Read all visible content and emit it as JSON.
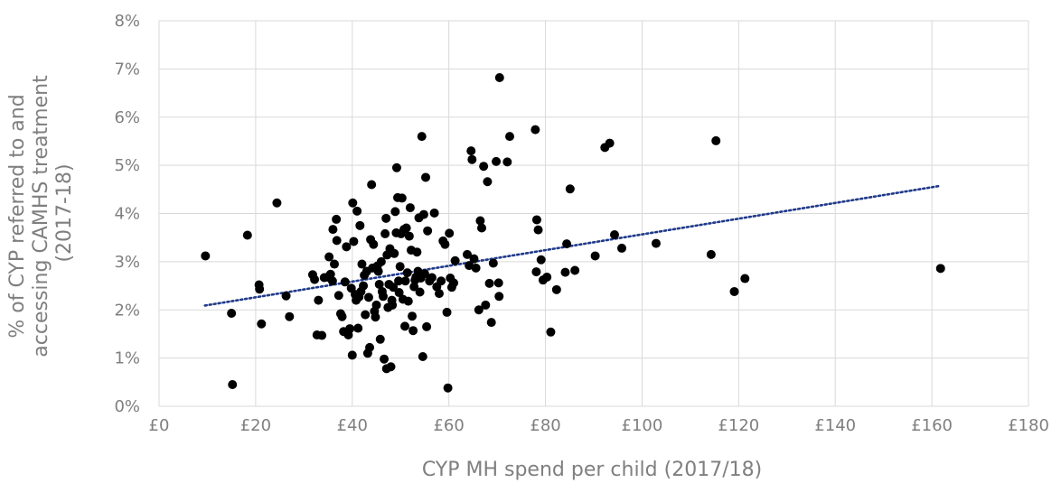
{
  "chart_data": {
    "type": "scatter",
    "xlabel": "CYP MH spend per child (2017/18)",
    "ylabel_lines": [
      "% of CYP referred to and",
      "accessing CAMHS treatment",
      "(2017-18)"
    ],
    "xlim": [
      0,
      180
    ],
    "ylim": [
      0,
      8
    ],
    "x_ticks": [
      {
        "value": 0,
        "label": "£0"
      },
      {
        "value": 20,
        "label": "£20"
      },
      {
        "value": 40,
        "label": "£40"
      },
      {
        "value": 60,
        "label": "£60"
      },
      {
        "value": 80,
        "label": "£80"
      },
      {
        "value": 100,
        "label": "£100"
      },
      {
        "value": 120,
        "label": "£120"
      },
      {
        "value": 140,
        "label": "£140"
      },
      {
        "value": 160,
        "label": "£160"
      },
      {
        "value": 180,
        "label": "£180"
      }
    ],
    "y_ticks": [
      {
        "value": 0,
        "label": "0%"
      },
      {
        "value": 1,
        "label": "1%"
      },
      {
        "value": 2,
        "label": "2%"
      },
      {
        "value": 3,
        "label": "3%"
      },
      {
        "value": 4,
        "label": "4%"
      },
      {
        "value": 5,
        "label": "5%"
      },
      {
        "value": 6,
        "label": "6%"
      },
      {
        "value": 7,
        "label": "7%"
      },
      {
        "value": 8,
        "label": "8%"
      }
    ],
    "grid": true,
    "point_color": "#000000",
    "trendline": {
      "type": "linear",
      "color": "#1f3a8a",
      "style": "dotted",
      "x_start": 9.5,
      "y_start": 2.09,
      "x_end": 161.5,
      "y_end": 4.57
    },
    "points": [
      [
        9.6,
        3.12
      ],
      [
        15,
        1.93
      ],
      [
        15.2,
        0.45
      ],
      [
        18.3,
        3.55
      ],
      [
        20.7,
        2.52
      ],
      [
        20.8,
        2.43
      ],
      [
        21.2,
        1.71
      ],
      [
        24.4,
        4.22
      ],
      [
        26.3,
        2.29
      ],
      [
        27,
        1.86
      ],
      [
        31.8,
        2.73
      ],
      [
        32.2,
        2.63
      ],
      [
        32.7,
        1.48
      ],
      [
        33,
        2.2
      ],
      [
        33.7,
        1.47
      ],
      [
        34.2,
        2.67
      ],
      [
        34.9,
        2.68
      ],
      [
        35.2,
        3.1
      ],
      [
        35.5,
        2.74
      ],
      [
        35.9,
        2.6
      ],
      [
        36,
        3.67
      ],
      [
        36.3,
        2.95
      ],
      [
        36.7,
        3.88
      ],
      [
        36.8,
        3.44
      ],
      [
        37.2,
        2.3
      ],
      [
        37.6,
        1.92
      ],
      [
        37.9,
        1.86
      ],
      [
        38.2,
        1.55
      ],
      [
        38.5,
        2.58
      ],
      [
        38.8,
        3.31
      ],
      [
        39.2,
        1.48
      ],
      [
        39.5,
        1.61
      ],
      [
        39.8,
        2.45
      ],
      [
        40,
        1.06
      ],
      [
        40.1,
        4.22
      ],
      [
        40.3,
        3.42
      ],
      [
        40.6,
        2.32
      ],
      [
        40.8,
        2.2
      ],
      [
        41,
        4.05
      ],
      [
        41.2,
        1.62
      ],
      [
        41.4,
        2.27
      ],
      [
        41.6,
        3.75
      ],
      [
        41.8,
        2.38
      ],
      [
        42,
        2.95
      ],
      [
        42.3,
        2.5
      ],
      [
        42.5,
        2.72
      ],
      [
        42.7,
        1.9
      ],
      [
        43,
        2.8
      ],
      [
        43.2,
        1.1
      ],
      [
        43.4,
        2.26
      ],
      [
        43.6,
        1.22
      ],
      [
        43.8,
        3.46
      ],
      [
        44,
        4.6
      ],
      [
        44.2,
        2.87
      ],
      [
        44.4,
        3.36
      ],
      [
        44.6,
        1.97
      ],
      [
        44.8,
        1.85
      ],
      [
        45,
        2.1
      ],
      [
        45.2,
        2.91
      ],
      [
        45.4,
        2.8
      ],
      [
        45.6,
        2.53
      ],
      [
        45.8,
        1.39
      ],
      [
        46,
        3.0
      ],
      [
        46.2,
        2.38
      ],
      [
        46.4,
        2.28
      ],
      [
        46.6,
        0.98
      ],
      [
        46.8,
        3.58
      ],
      [
        47,
        3.9
      ],
      [
        47.1,
        0.78
      ],
      [
        47.2,
        3.14
      ],
      [
        47.4,
        2.05
      ],
      [
        47.6,
        2.53
      ],
      [
        47.8,
        3.27
      ],
      [
        48,
        0.82
      ],
      [
        48.2,
        2.2
      ],
      [
        48.3,
        2.1
      ],
      [
        48.5,
        2.47
      ],
      [
        48.7,
        3.17
      ],
      [
        48.9,
        4.04
      ],
      [
        49.1,
        3.6
      ],
      [
        49.2,
        4.95
      ],
      [
        49.4,
        4.33
      ],
      [
        49.6,
        2.6
      ],
      [
        49.7,
        2.36
      ],
      [
        49.9,
        2.9
      ],
      [
        50.1,
        3.58
      ],
      [
        50.3,
        4.32
      ],
      [
        50.5,
        2.22
      ],
      [
        50.7,
        3.67
      ],
      [
        50.9,
        1.66
      ],
      [
        51,
        2.6
      ],
      [
        51.2,
        3.7
      ],
      [
        51.4,
        2.77
      ],
      [
        51.6,
        2.18
      ],
      [
        51.8,
        3.53
      ],
      [
        52,
        4.12
      ],
      [
        52.2,
        3.24
      ],
      [
        52.4,
        1.87
      ],
      [
        52.6,
        1.57
      ],
      [
        52.8,
        2.48
      ],
      [
        53,
        2.62
      ],
      [
        53.2,
        2.68
      ],
      [
        53.4,
        3.2
      ],
      [
        53.6,
        2.8
      ],
      [
        53.8,
        3.91
      ],
      [
        54,
        2.37
      ],
      [
        54.2,
        2.66
      ],
      [
        54.4,
        5.6
      ],
      [
        54.6,
        1.03
      ],
      [
        54.8,
        3.98
      ],
      [
        55,
        2.75
      ],
      [
        55.2,
        4.75
      ],
      [
        55.4,
        1.65
      ],
      [
        55.6,
        3.64
      ],
      [
        56,
        2.6
      ],
      [
        56.5,
        2.67
      ],
      [
        57,
        4.01
      ],
      [
        57.5,
        2.48
      ],
      [
        58,
        2.34
      ],
      [
        58.4,
        2.6
      ],
      [
        58.8,
        3.43
      ],
      [
        59.2,
        3.36
      ],
      [
        59.6,
        1.95
      ],
      [
        59.8,
        0.38
      ],
      [
        60.1,
        3.59
      ],
      [
        60.3,
        2.66
      ],
      [
        60.6,
        2.47
      ],
      [
        61,
        2.56
      ],
      [
        61.3,
        3.02
      ],
      [
        63.8,
        3.15
      ],
      [
        64.2,
        2.92
      ],
      [
        64.6,
        5.3
      ],
      [
        64.8,
        5.12
      ],
      [
        65.2,
        3.06
      ],
      [
        65.6,
        2.87
      ],
      [
        66.2,
        2.0
      ],
      [
        66.5,
        3.85
      ],
      [
        66.8,
        3.7
      ],
      [
        67.2,
        4.98
      ],
      [
        67.6,
        2.1
      ],
      [
        68,
        4.66
      ],
      [
        68.4,
        2.55
      ],
      [
        68.8,
        1.74
      ],
      [
        69.2,
        2.97
      ],
      [
        69.8,
        5.08
      ],
      [
        70.3,
        2.56
      ],
      [
        70.4,
        2.28
      ],
      [
        70.5,
        6.82
      ],
      [
        72.1,
        5.07
      ],
      [
        72.6,
        5.6
      ],
      [
        77.9,
        5.74
      ],
      [
        78.1,
        2.79
      ],
      [
        78.2,
        3.87
      ],
      [
        78.5,
        3.66
      ],
      [
        79.1,
        3.04
      ],
      [
        79.5,
        2.62
      ],
      [
        80.3,
        2.68
      ],
      [
        81.1,
        1.54
      ],
      [
        82.3,
        2.42
      ],
      [
        84.1,
        2.78
      ],
      [
        84.4,
        3.37
      ],
      [
        85.1,
        4.51
      ],
      [
        86.1,
        2.82
      ],
      [
        90.3,
        3.12
      ],
      [
        92.3,
        5.37
      ],
      [
        93.3,
        5.46
      ],
      [
        94.3,
        3.56
      ],
      [
        95.8,
        3.28
      ],
      [
        102.9,
        3.38
      ],
      [
        114.3,
        3.15
      ],
      [
        115.3,
        5.51
      ],
      [
        119.1,
        2.38
      ],
      [
        121.3,
        2.65
      ],
      [
        161.8,
        2.86
      ]
    ]
  }
}
